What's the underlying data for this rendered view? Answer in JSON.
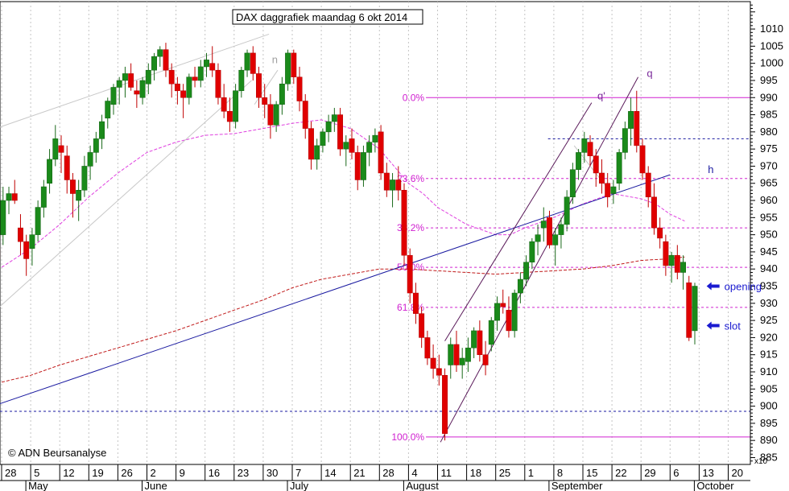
{
  "chart_data": {
    "type": "candlestick",
    "title": "DAX daggrafiek maandag 6 okt 2014",
    "copyright": "© ADN Beursanalyse",
    "ylim": [
      883,
      1018
    ],
    "y_multiplier_label": "x10",
    "y_ticks": [
      885,
      890,
      895,
      900,
      905,
      910,
      915,
      920,
      925,
      930,
      935,
      940,
      945,
      950,
      955,
      960,
      965,
      970,
      975,
      980,
      985,
      990,
      995,
      1000,
      1005,
      1010
    ],
    "x_day_ticks": [
      "28",
      "5",
      "12",
      "19",
      "26",
      "2",
      "9",
      "16",
      "23",
      "30",
      "7",
      "14",
      "21",
      "28",
      "4",
      "11",
      "18",
      "25",
      "1",
      "8",
      "15",
      "22",
      "29",
      "6",
      "13",
      "20"
    ],
    "x_months": [
      {
        "label": "May",
        "week": 1
      },
      {
        "label": "June",
        "week": 5
      },
      {
        "label": "July",
        "week": 10
      },
      {
        "label": "August",
        "week": 14
      },
      {
        "label": "September",
        "week": 19
      },
      {
        "label": "October",
        "week": 24
      }
    ],
    "fib_levels": [
      {
        "label": "0.0%",
        "value": 990
      },
      {
        "label": "23.6%",
        "value": 966.4
      },
      {
        "label": "38.2%",
        "value": 952
      },
      {
        "label": "50.0%",
        "value": 940.5
      },
      {
        "label": "61.8%",
        "value": 928.8
      },
      {
        "label": "100.0%",
        "value": 891
      }
    ],
    "horizontal_lines": [
      {
        "value": 978,
        "style": "dotted-blue"
      },
      {
        "value": 898.5,
        "style": "dotted-blue"
      }
    ],
    "annotations": [
      {
        "text": "q",
        "week": 22.2,
        "value": 996
      },
      {
        "text": "q'",
        "week": 20.5,
        "value": 989.5
      },
      {
        "text": "h",
        "week": 24.3,
        "value": 968
      },
      {
        "text": "n",
        "week": 9.3,
        "value": 1000
      },
      {
        "text": "opening",
        "week": 24.7,
        "value": 935
      },
      {
        "text": "slot",
        "week": 24.7,
        "value": 923.5
      }
    ],
    "candles": [
      [
        -0.15,
        946,
        953,
        940,
        943
      ],
      [
        0.05,
        950,
        964,
        947,
        960
      ],
      [
        0.25,
        960,
        964,
        956,
        962
      ],
      [
        0.45,
        962,
        966,
        959,
        960
      ],
      [
        0.65,
        952,
        956,
        944,
        948
      ],
      [
        0.85,
        948,
        950,
        938,
        943
      ],
      [
        1.05,
        946,
        952,
        941,
        950
      ],
      [
        1.25,
        950,
        960,
        948,
        958
      ],
      [
        1.45,
        958,
        966,
        955,
        964
      ],
      [
        1.65,
        965,
        975,
        962,
        972
      ],
      [
        1.85,
        972,
        982,
        970,
        978
      ],
      [
        2.05,
        976,
        979,
        968,
        974
      ],
      [
        2.25,
        973,
        976,
        962,
        966
      ],
      [
        2.45,
        966,
        968,
        955,
        962
      ],
      [
        2.65,
        960,
        966,
        954,
        963
      ],
      [
        2.85,
        963,
        973,
        961,
        970
      ],
      [
        3.05,
        970,
        976,
        966,
        974
      ],
      [
        3.25,
        974,
        980,
        971,
        978
      ],
      [
        3.45,
        978,
        985,
        975,
        983
      ],
      [
        3.65,
        984,
        990,
        981,
        989
      ],
      [
        3.85,
        988,
        994,
        985,
        993
      ],
      [
        4.05,
        993,
        996,
        988,
        995
      ],
      [
        4.25,
        995,
        999,
        990,
        997
      ],
      [
        4.45,
        997,
        1000,
        992,
        993
      ],
      [
        4.65,
        992,
        995,
        987,
        991
      ],
      [
        4.85,
        990,
        996,
        988,
        995
      ],
      [
        5.05,
        994,
        1000,
        991,
        998
      ],
      [
        5.25,
        998,
        1003,
        995,
        1002
      ],
      [
        5.45,
        1002,
        1005,
        999,
        1004
      ],
      [
        5.65,
        1004,
        1006,
        996,
        998
      ],
      [
        5.85,
        998,
        1000,
        990,
        994
      ],
      [
        6.05,
        994,
        996,
        988,
        992
      ],
      [
        6.25,
        992,
        994,
        984,
        990
      ],
      [
        6.45,
        990,
        997,
        988,
        996
      ],
      [
        6.65,
        996,
        999,
        993,
        995
      ],
      [
        6.85,
        995,
        1001,
        993,
        999
      ],
      [
        7.05,
        999,
        1003,
        996,
        1001
      ],
      [
        7.25,
        1000,
        1005,
        996,
        998
      ],
      [
        7.45,
        998,
        1000,
        988,
        990
      ],
      [
        7.65,
        990,
        994,
        984,
        986
      ],
      [
        7.85,
        986,
        990,
        980,
        983
      ],
      [
        8.05,
        983,
        994,
        981,
        992
      ],
      [
        8.25,
        992,
        999,
        990,
        998
      ],
      [
        8.45,
        998,
        1004,
        996,
        1003
      ],
      [
        8.65,
        1003,
        1005,
        995,
        997
      ],
      [
        8.85,
        997,
        999,
        987,
        990
      ],
      [
        9.05,
        990,
        994,
        984,
        988
      ],
      [
        9.25,
        988,
        991,
        978,
        982
      ],
      [
        9.45,
        982,
        989,
        980,
        988
      ],
      [
        9.65,
        988,
        996,
        985,
        994
      ],
      [
        9.85,
        994,
        1004,
        992,
        1003
      ],
      [
        10.05,
        1003,
        1004,
        994,
        996
      ],
      [
        10.25,
        996,
        999,
        986,
        989
      ],
      [
        10.45,
        989,
        991,
        978,
        981
      ],
      [
        10.65,
        981,
        983,
        969,
        972
      ],
      [
        10.85,
        972,
        978,
        969,
        976
      ],
      [
        11.05,
        976,
        981,
        974,
        980
      ],
      [
        11.25,
        980,
        985,
        977,
        983
      ],
      [
        11.45,
        983,
        987,
        980,
        985
      ],
      [
        11.65,
        985,
        987,
        973,
        975
      ],
      [
        11.85,
        975,
        979,
        970,
        977
      ],
      [
        12.05,
        978,
        981,
        972,
        974
      ],
      [
        12.25,
        974,
        976,
        963,
        966
      ],
      [
        12.45,
        966,
        976,
        964,
        974
      ],
      [
        12.65,
        974,
        979,
        970,
        977
      ],
      [
        12.85,
        977,
        981,
        974,
        979
      ],
      [
        13.05,
        980,
        982,
        966,
        968
      ],
      [
        13.25,
        968,
        971,
        961,
        963
      ],
      [
        13.45,
        963,
        968,
        958,
        966
      ],
      [
        13.65,
        966,
        970,
        960,
        963
      ],
      [
        13.85,
        963,
        965,
        941,
        944
      ],
      [
        14.05,
        944,
        946,
        930,
        933
      ],
      [
        14.25,
        933,
        936,
        924,
        927
      ],
      [
        14.45,
        927,
        929,
        917,
        920
      ],
      [
        14.65,
        920,
        922,
        912,
        914
      ],
      [
        14.85,
        914,
        918,
        908,
        911
      ],
      [
        15.05,
        911,
        915,
        906,
        909
      ],
      [
        15.25,
        909,
        911,
        890,
        892
      ],
      [
        15.45,
        912,
        920,
        908,
        918
      ],
      [
        15.65,
        918,
        922,
        910,
        912
      ],
      [
        15.85,
        912,
        917,
        908,
        914
      ],
      [
        16.05,
        913,
        920,
        910,
        917
      ],
      [
        16.25,
        917,
        923,
        914,
        922
      ],
      [
        16.45,
        922,
        925,
        913,
        915
      ],
      [
        16.65,
        915,
        919,
        909,
        912
      ],
      [
        16.85,
        918,
        926,
        916,
        925
      ],
      [
        17.05,
        925,
        932,
        922,
        930
      ],
      [
        17.25,
        930,
        934,
        927,
        929
      ],
      [
        17.45,
        928,
        932,
        920,
        922
      ],
      [
        17.65,
        922,
        934,
        920,
        933
      ],
      [
        17.85,
        933,
        939,
        930,
        937
      ],
      [
        18.05,
        937,
        944,
        935,
        942
      ],
      [
        18.25,
        942,
        949,
        940,
        948
      ],
      [
        18.45,
        948,
        953,
        944,
        950
      ],
      [
        18.65,
        952,
        958,
        948,
        954
      ],
      [
        18.85,
        955,
        957,
        946,
        947
      ],
      [
        19.05,
        947,
        952,
        941,
        950
      ],
      [
        19.25,
        950,
        955,
        946,
        953
      ],
      [
        19.45,
        953,
        963,
        951,
        961
      ],
      [
        19.65,
        961,
        971,
        959,
        969
      ],
      [
        19.85,
        969,
        975,
        966,
        974
      ],
      [
        20.05,
        974,
        980,
        971,
        978
      ],
      [
        20.25,
        977,
        979,
        970,
        973
      ],
      [
        20.45,
        973,
        975,
        964,
        968
      ],
      [
        20.65,
        968,
        972,
        962,
        965
      ],
      [
        20.85,
        965,
        968,
        958,
        961
      ],
      [
        21.05,
        962,
        966,
        959,
        964
      ],
      [
        21.25,
        965,
        975,
        963,
        974
      ],
      [
        21.45,
        974,
        983,
        972,
        981
      ],
      [
        21.65,
        981,
        990,
        976,
        986
      ],
      [
        21.85,
        986,
        992,
        974,
        976
      ],
      [
        22.05,
        976,
        978,
        966,
        968
      ],
      [
        22.25,
        968,
        970,
        958,
        961
      ],
      [
        22.45,
        961,
        965,
        950,
        952
      ],
      [
        22.65,
        952,
        955,
        946,
        949
      ],
      [
        22.85,
        948,
        950,
        938,
        941
      ],
      [
        23.05,
        941,
        945,
        936,
        944
      ],
      [
        23.25,
        944,
        947,
        937,
        939
      ],
      [
        23.45,
        939,
        944,
        934,
        942
      ],
      [
        23.65,
        936,
        938,
        919,
        920
      ],
      [
        23.85,
        922,
        936,
        918,
        935
      ]
    ],
    "ma_short": [
      [
        0,
        940.5
      ],
      [
        1,
        946
      ],
      [
        2,
        953
      ],
      [
        3,
        961
      ],
      [
        4,
        968
      ],
      [
        5,
        974
      ],
      [
        6,
        977
      ],
      [
        7,
        979
      ],
      [
        8,
        979.5
      ],
      [
        9,
        981
      ],
      [
        10,
        982.5
      ],
      [
        11,
        983.5
      ],
      [
        12,
        981
      ],
      [
        13,
        975
      ],
      [
        14,
        965
      ],
      [
        14.5,
        962
      ],
      [
        15,
        958
      ],
      [
        16,
        953
      ],
      [
        17,
        950
      ],
      [
        17.5,
        950
      ],
      [
        18,
        952
      ],
      [
        19,
        955
      ],
      [
        20,
        959
      ],
      [
        21,
        962
      ],
      [
        22,
        960.5
      ],
      [
        22.5,
        959
      ],
      [
        23,
        956
      ],
      [
        23.5,
        954
      ]
    ],
    "ma_long": [
      [
        0,
        907
      ],
      [
        1,
        909
      ],
      [
        2,
        912
      ],
      [
        3,
        914.5
      ],
      [
        4,
        917
      ],
      [
        5,
        919.5
      ],
      [
        6,
        922
      ],
      [
        7,
        925
      ],
      [
        8,
        928
      ],
      [
        9,
        931
      ],
      [
        10,
        934.5
      ],
      [
        11,
        937
      ],
      [
        12,
        938.5
      ],
      [
        13,
        940
      ],
      [
        14,
        940
      ],
      [
        15,
        939.5
      ],
      [
        16,
        939
      ],
      [
        17,
        938.5
      ],
      [
        18,
        939
      ],
      [
        19,
        939.5
      ],
      [
        20,
        940
      ],
      [
        21,
        941
      ],
      [
        22,
        942.5
      ],
      [
        23,
        943
      ],
      [
        23.5,
        943.5
      ]
    ],
    "trend_lines": [
      {
        "from": [
          -0.2,
          900.3
        ],
        "to": [
          23.0,
          967.5
        ],
        "color": "#1a1aa0"
      },
      {
        "from": [
          -0.2,
          981
        ],
        "to": [
          9.2,
          1008.5
        ],
        "color": "#c8c8c8"
      },
      {
        "from": [
          -0.2,
          928
        ],
        "to": [
          8.6,
          995
        ],
        "color": "#c8c8c8"
      },
      {
        "from": [
          15.1,
          889.5
        ],
        "to": [
          21.9,
          996
        ],
        "color": "#5a1a5a"
      },
      {
        "from": [
          15.25,
          919
        ],
        "to": [
          20.3,
          988.5
        ],
        "color": "#5a1a5a"
      },
      {
        "from": [
          8.7,
          988
        ],
        "to": [
          9.5,
          998
        ],
        "color": "#c8c8c8"
      },
      {
        "from": [
          19.7,
          976
        ],
        "to": [
          20.9,
          963
        ],
        "color": "#c8c8c8"
      }
    ]
  }
}
